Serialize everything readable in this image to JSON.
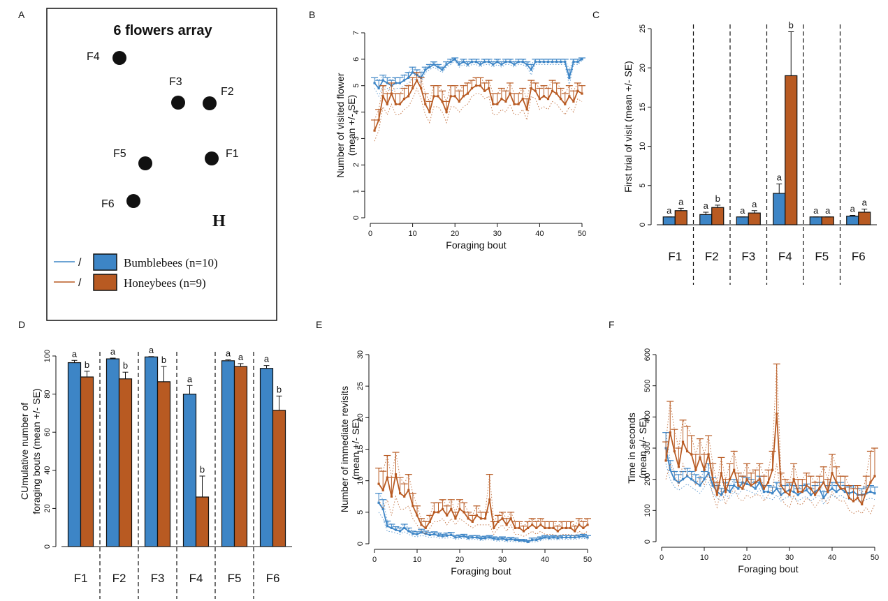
{
  "colors": {
    "bumblebee": "#3d85c6",
    "honeybee": "#b85a22",
    "axis": "#111111"
  },
  "panel_labels": [
    "A",
    "B",
    "C",
    "D",
    "E",
    "F"
  ],
  "panel_a": {
    "title": "6 flowers array",
    "flowers": [
      "F4",
      "F3",
      "F2",
      "F5",
      "F1",
      "F6"
    ],
    "hive_label": "H",
    "legend": [
      {
        "name": "Bumblebees (n=10)",
        "sep": "/"
      },
      {
        "name": "Honeybees (n=9)",
        "sep": "/"
      }
    ]
  },
  "chart_data": [
    {
      "panel": "B",
      "type": "line",
      "xlabel": "Foraging bout",
      "ylabel": "Number of visited flower (mean +/- SE)",
      "xlim": [
        0,
        50
      ],
      "ylim": [
        0,
        7
      ],
      "xticks": [
        "0",
        "10",
        "20",
        "30",
        "40",
        "50"
      ],
      "yticks": [
        "0",
        "1",
        "2",
        "3",
        "4",
        "5",
        "6",
        "7"
      ],
      "x": [
        1,
        2,
        3,
        4,
        5,
        6,
        7,
        8,
        9,
        10,
        11,
        12,
        13,
        14,
        15,
        16,
        17,
        18,
        19,
        20,
        21,
        22,
        23,
        24,
        25,
        26,
        27,
        28,
        29,
        30,
        31,
        32,
        33,
        34,
        35,
        36,
        37,
        38,
        39,
        40,
        41,
        42,
        43,
        44,
        45,
        46,
        47,
        48,
        49,
        50
      ],
      "series": [
        {
          "name": "Bumblebees (n=10)",
          "values": [
            5.1,
            4.9,
            5.2,
            5.1,
            5.0,
            5.1,
            5.1,
            5.2,
            5.3,
            5.5,
            5.4,
            5.3,
            5.6,
            5.7,
            5.8,
            5.7,
            5.6,
            5.8,
            5.9,
            6.0,
            5.8,
            5.9,
            5.8,
            5.9,
            5.9,
            5.8,
            5.9,
            5.9,
            5.8,
            5.9,
            5.8,
            5.9,
            5.9,
            5.8,
            5.9,
            5.9,
            5.8,
            5.6,
            5.9,
            5.9,
            5.9,
            5.9,
            5.9,
            5.9,
            5.9,
            5.9,
            5.3,
            5.9,
            5.9,
            6.0
          ],
          "se": [
            0.2,
            0.3,
            0.2,
            0.2,
            0.2,
            0.2,
            0.2,
            0.2,
            0.2,
            0.2,
            0.2,
            0.2,
            0.1,
            0.1,
            0.1,
            0.1,
            0.1,
            0.1,
            0.1,
            0.05,
            0.1,
            0.1,
            0.1,
            0.1,
            0.1,
            0.1,
            0.1,
            0.1,
            0.1,
            0.1,
            0.1,
            0.1,
            0.1,
            0.1,
            0.1,
            0.1,
            0.1,
            0.2,
            0.1,
            0.1,
            0.1,
            0.1,
            0.1,
            0.1,
            0.1,
            0.1,
            0.3,
            0.1,
            0.1,
            0.05
          ]
        },
        {
          "name": "Honeybees (n=9)",
          "values": [
            3.3,
            3.7,
            4.6,
            4.3,
            4.7,
            4.3,
            4.3,
            4.5,
            4.6,
            4.9,
            5.2,
            4.9,
            4.3,
            4.0,
            4.6,
            4.6,
            4.4,
            4.0,
            4.6,
            4.6,
            4.4,
            4.6,
            4.7,
            4.9,
            5.0,
            5.0,
            4.8,
            4.9,
            4.3,
            4.3,
            4.5,
            4.4,
            4.7,
            4.3,
            4.3,
            4.5,
            4.1,
            4.9,
            4.8,
            4.5,
            4.6,
            4.5,
            4.8,
            4.7,
            4.5,
            4.3,
            4.6,
            4.4,
            4.8,
            4.7
          ],
          "se": [
            0.4,
            0.4,
            0.4,
            0.4,
            0.4,
            0.4,
            0.4,
            0.4,
            0.4,
            0.4,
            0.3,
            0.4,
            0.4,
            0.4,
            0.4,
            0.4,
            0.4,
            0.4,
            0.4,
            0.4,
            0.4,
            0.4,
            0.4,
            0.3,
            0.3,
            0.3,
            0.3,
            0.3,
            0.4,
            0.4,
            0.4,
            0.4,
            0.4,
            0.4,
            0.4,
            0.4,
            0.4,
            0.3,
            0.3,
            0.4,
            0.4,
            0.4,
            0.4,
            0.4,
            0.4,
            0.4,
            0.4,
            0.4,
            0.3,
            0.3
          ]
        }
      ]
    },
    {
      "panel": "C",
      "type": "bar",
      "ylabel": "First trial of visit (mean +/- SE)",
      "ylim": [
        0,
        25
      ],
      "yticks": [
        "0",
        "5",
        "10",
        "15",
        "20",
        "25"
      ],
      "categories": [
        "F1",
        "F2",
        "F3",
        "F4",
        "F5",
        "F6"
      ],
      "series": [
        {
          "name": "Bumblebees (n=10)",
          "values": [
            1.0,
            1.3,
            1.0,
            4.0,
            1.0,
            1.1
          ],
          "se": [
            0.0,
            0.3,
            0.0,
            1.2,
            0.0,
            0.1
          ],
          "letters": [
            "a",
            "a",
            "a",
            "a",
            "a",
            "a"
          ]
        },
        {
          "name": "Honeybees (n=9)",
          "values": [
            1.8,
            2.2,
            1.5,
            19.0,
            1.0,
            1.6
          ],
          "se": [
            0.3,
            0.3,
            0.3,
            5.6,
            0.0,
            0.4
          ],
          "letters": [
            "a",
            "b",
            "a",
            "b",
            "a",
            "a"
          ]
        }
      ]
    },
    {
      "panel": "D",
      "type": "bar",
      "ylabel": "CUmulative number of foraging bouts (mean +/- SE)",
      "ylim": [
        0,
        100
      ],
      "yticks": [
        "0",
        "20",
        "40",
        "60",
        "80",
        "100"
      ],
      "categories": [
        "F1",
        "F2",
        "F3",
        "F4",
        "F5",
        "F6"
      ],
      "series": [
        {
          "name": "Bumblebees (n=10)",
          "values": [
            96.5,
            98.5,
            99.5,
            80.0,
            97.5,
            93.5
          ],
          "se": [
            1.2,
            0.4,
            0.2,
            4.5,
            0.5,
            1.5
          ],
          "letters": [
            "a",
            "a",
            "a",
            "a",
            "a",
            "a"
          ]
        },
        {
          "name": "Honeybees (n=9)",
          "values": [
            89.0,
            88.0,
            86.5,
            26.0,
            94.5,
            71.5
          ],
          "se": [
            3.0,
            3.5,
            8.0,
            11.0,
            1.5,
            7.5
          ],
          "letters": [
            "b",
            "b",
            "b",
            "b",
            "a",
            "b"
          ]
        }
      ]
    },
    {
      "panel": "E",
      "type": "line",
      "xlabel": "Foraging bout",
      "ylabel": "Number of immediate revisits (mean +/- SE)",
      "xlim": [
        0,
        50
      ],
      "ylim": [
        0,
        30
      ],
      "xticks": [
        "0",
        "10",
        "20",
        "30",
        "40",
        "50"
      ],
      "yticks": [
        "0",
        "5",
        "10",
        "15",
        "20",
        "25",
        "30"
      ],
      "x": [
        1,
        2,
        3,
        4,
        5,
        6,
        7,
        8,
        9,
        10,
        11,
        12,
        13,
        14,
        15,
        16,
        17,
        18,
        19,
        20,
        21,
        22,
        23,
        24,
        25,
        26,
        27,
        28,
        29,
        30,
        31,
        32,
        33,
        34,
        35,
        36,
        37,
        38,
        39,
        40,
        41,
        42,
        43,
        44,
        45,
        46,
        47,
        48,
        49,
        50
      ],
      "series": [
        {
          "name": "Bumblebees (n=10)",
          "values": [
            6.5,
            5.5,
            2.8,
            2.5,
            2.2,
            2.0,
            2.5,
            2.0,
            1.6,
            1.5,
            1.8,
            1.6,
            1.4,
            1.5,
            1.3,
            1.2,
            1.3,
            1.4,
            1.0,
            1.1,
            1.2,
            0.9,
            1.0,
            1.0,
            0.8,
            0.9,
            1.0,
            0.8,
            0.7,
            0.8,
            0.6,
            0.7,
            0.6,
            0.5,
            0.5,
            0.3,
            0.6,
            0.6,
            0.8,
            1.0,
            0.9,
            1.0,
            0.9,
            1.0,
            1.0,
            1.0,
            1.0,
            1.1,
            1.2,
            1.0
          ],
          "se": [
            1.5,
            1.5,
            0.8,
            0.6,
            0.5,
            0.5,
            0.6,
            0.5,
            0.4,
            0.4,
            0.5,
            0.4,
            0.4,
            0.4,
            0.4,
            0.3,
            0.4,
            0.4,
            0.3,
            0.3,
            0.3,
            0.3,
            0.3,
            0.3,
            0.3,
            0.3,
            0.3,
            0.3,
            0.3,
            0.3,
            0.3,
            0.3,
            0.3,
            0.2,
            0.2,
            0.2,
            0.3,
            0.3,
            0.3,
            0.3,
            0.3,
            0.3,
            0.3,
            0.3,
            0.3,
            0.3,
            0.3,
            0.3,
            0.3,
            0.3
          ]
        },
        {
          "name": "Honeybees (n=9)",
          "values": [
            9.5,
            8.5,
            10.5,
            7.5,
            11.0,
            8.0,
            7.5,
            8.5,
            6.0,
            4.5,
            3.0,
            2.5,
            3.5,
            5.0,
            5.0,
            5.5,
            4.5,
            5.5,
            4.0,
            5.5,
            5.0,
            4.0,
            3.5,
            4.5,
            4.0,
            4.0,
            7.0,
            2.5,
            3.5,
            4.0,
            3.0,
            4.0,
            2.5,
            2.5,
            2.0,
            2.5,
            3.0,
            2.5,
            3.0,
            2.5,
            2.5,
            2.5,
            2.0,
            2.5,
            2.5,
            2.5,
            2.0,
            3.0,
            2.5,
            3.0
          ],
          "se": [
            2.5,
            3.0,
            3.5,
            3.0,
            3.5,
            2.5,
            2.0,
            2.5,
            2.0,
            1.5,
            1.0,
            1.0,
            1.0,
            1.5,
            1.5,
            1.5,
            1.5,
            1.5,
            1.0,
            1.5,
            1.5,
            1.0,
            1.0,
            1.5,
            1.0,
            1.0,
            4.0,
            1.0,
            1.0,
            1.0,
            1.0,
            1.0,
            1.0,
            1.0,
            0.8,
            1.0,
            1.0,
            1.0,
            1.0,
            1.0,
            1.0,
            1.0,
            0.8,
            1.0,
            1.0,
            1.0,
            0.8,
            1.0,
            1.0,
            1.0
          ]
        }
      ]
    },
    {
      "panel": "F",
      "type": "line",
      "xlabel": "Foraging bout",
      "ylabel": "Time in seconds (mean +/- SE)",
      "xlim": [
        0,
        50
      ],
      "ylim": [
        0,
        600
      ],
      "xticks": [
        "0",
        "10",
        "20",
        "30",
        "40",
        "50"
      ],
      "yticks": [
        "0",
        "100",
        "200",
        "300",
        "400",
        "500",
        "600"
      ],
      "x": [
        1,
        2,
        3,
        4,
        5,
        6,
        7,
        8,
        9,
        10,
        11,
        12,
        13,
        14,
        15,
        16,
        17,
        18,
        19,
        20,
        21,
        22,
        23,
        24,
        25,
        26,
        27,
        28,
        29,
        30,
        31,
        32,
        33,
        34,
        35,
        36,
        37,
        38,
        39,
        40,
        41,
        42,
        43,
        44,
        45,
        46,
        47,
        48,
        49,
        50
      ],
      "series": [
        {
          "name": "Bumblebees (n=10)",
          "values": [
            300,
            230,
            200,
            190,
            200,
            210,
            200,
            190,
            180,
            200,
            220,
            180,
            160,
            150,
            170,
            160,
            180,
            170,
            190,
            185,
            180,
            170,
            190,
            160,
            160,
            155,
            170,
            150,
            160,
            165,
            160,
            150,
            160,
            165,
            150,
            160,
            170,
            140,
            160,
            170,
            160,
            170,
            160,
            155,
            160,
            150,
            150,
            155,
            160,
            155
          ],
          "se": [
            50,
            30,
            25,
            25,
            25,
            25,
            25,
            25,
            25,
            25,
            30,
            25,
            20,
            20,
            20,
            20,
            20,
            20,
            20,
            20,
            20,
            20,
            20,
            20,
            20,
            20,
            20,
            20,
            20,
            20,
            20,
            20,
            20,
            20,
            20,
            20,
            20,
            20,
            20,
            20,
            20,
            20,
            20,
            20,
            20,
            20,
            20,
            20,
            20,
            20
          ]
        },
        {
          "name": "Honeybees (n=9)",
          "values": [
            260,
            350,
            290,
            240,
            320,
            290,
            280,
            230,
            270,
            230,
            280,
            200,
            150,
            220,
            160,
            200,
            230,
            180,
            170,
            200,
            180,
            190,
            200,
            170,
            190,
            230,
            410,
            180,
            160,
            150,
            200,
            160,
            160,
            180,
            170,
            150,
            170,
            190,
            160,
            220,
            190,
            170,
            170,
            140,
            130,
            140,
            120,
            160,
            190,
            210
          ],
          "se": [
            60,
            100,
            70,
            60,
            70,
            80,
            60,
            50,
            60,
            50,
            60,
            50,
            40,
            50,
            40,
            50,
            60,
            40,
            40,
            50,
            40,
            40,
            50,
            40,
            40,
            60,
            160,
            40,
            40,
            40,
            50,
            40,
            40,
            40,
            40,
            40,
            40,
            50,
            40,
            60,
            50,
            40,
            40,
            40,
            40,
            40,
            30,
            50,
            100,
            90
          ]
        }
      ]
    }
  ]
}
